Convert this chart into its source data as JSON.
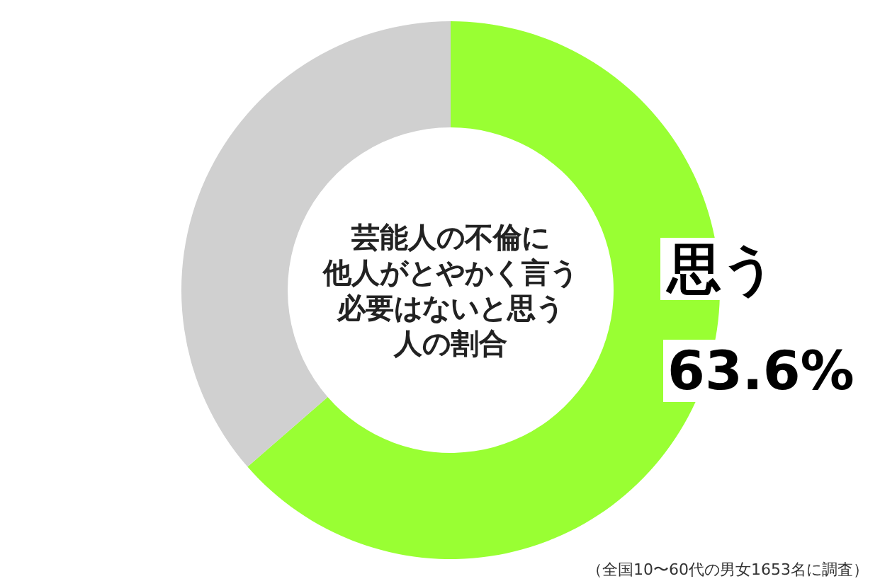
{
  "chart_data": {
    "type": "donut",
    "title": "芸能人の不倫に他人がとやかく言う必要はないと思う人の割合",
    "categories": [
      "思う",
      null
    ],
    "values": [
      63.6,
      36.4
    ],
    "colors": [
      "#99ff33",
      "#d0d0d0"
    ],
    "value_labels": [
      "63.6%",
      null
    ],
    "annotations": [
      "（全国10〜60代の男女1653名に調査）"
    ]
  }
}
